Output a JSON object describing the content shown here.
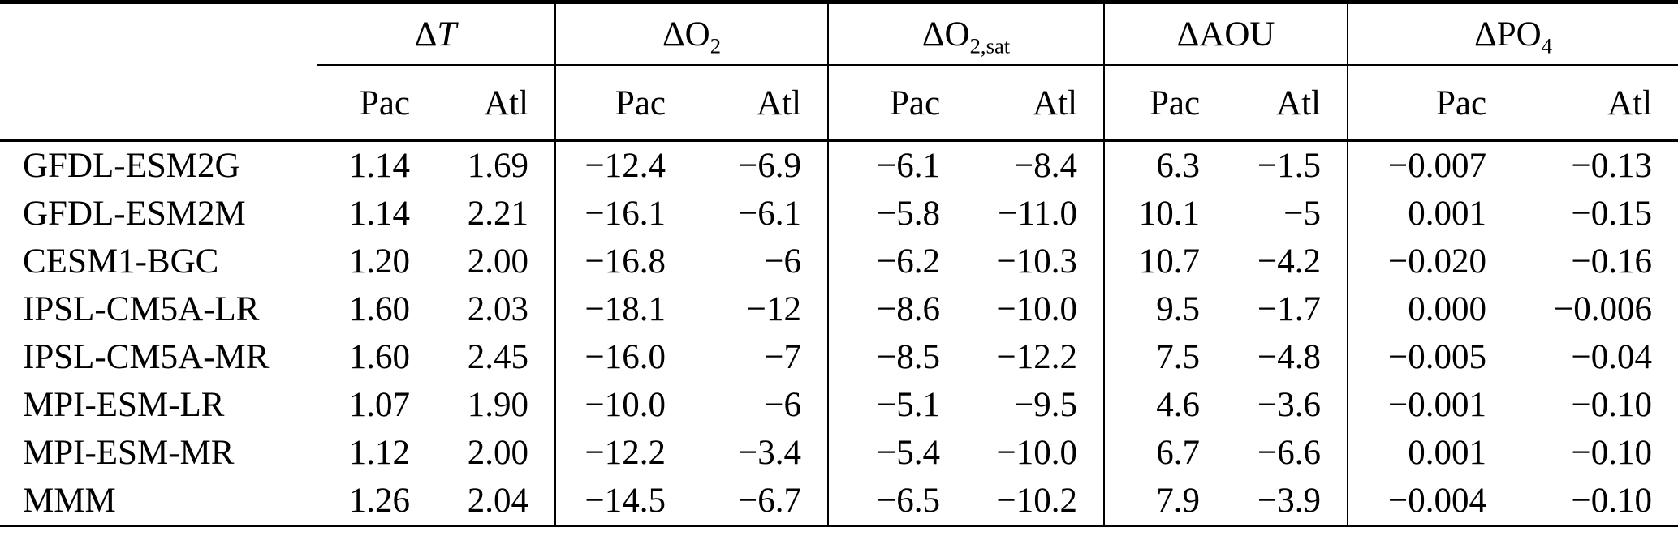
{
  "colors": {
    "background": "#ffffff",
    "text": "#000000",
    "rules": "#000000"
  },
  "table": {
    "groups": [
      {
        "id": "delta-t",
        "prefix": "Δ",
        "italic": "T",
        "sub": ""
      },
      {
        "id": "delta-o2",
        "prefix": "ΔO",
        "italic": "",
        "sub": "2"
      },
      {
        "id": "delta-o2-sat",
        "prefix": "ΔO",
        "italic": "",
        "sub": "2,sat"
      },
      {
        "id": "delta-aou",
        "prefix": "ΔAOU",
        "italic": "",
        "sub": ""
      },
      {
        "id": "delta-po4",
        "prefix": "ΔPO",
        "italic": "",
        "sub": "4"
      }
    ],
    "subheaders": [
      "Pac",
      "Atl"
    ],
    "rows": [
      {
        "model": "GFDL-ESM2G",
        "values": [
          "1.14",
          "1.69",
          "−12.4",
          "−6.9",
          "−6.1",
          "−8.4",
          "6.3",
          "−1.5",
          "−0.007",
          "−0.13"
        ]
      },
      {
        "model": "GFDL-ESM2M",
        "values": [
          "1.14",
          "2.21",
          "−16.1",
          "−6.1",
          "−5.8",
          "−11.0",
          "10.1",
          "−5",
          "0.001",
          "−0.15"
        ]
      },
      {
        "model": "CESM1-BGC",
        "values": [
          "1.20",
          "2.00",
          "−16.8",
          "−6",
          "−6.2",
          "−10.3",
          "10.7",
          "−4.2",
          "−0.020",
          "−0.16"
        ]
      },
      {
        "model": "IPSL-CM5A-LR",
        "values": [
          "1.60",
          "2.03",
          "−18.1",
          "−12",
          "−8.6",
          "−10.0",
          "9.5",
          "−1.7",
          "0.000",
          "−0.006"
        ]
      },
      {
        "model": "IPSL-CM5A-MR",
        "values": [
          "1.60",
          "2.45",
          "−16.0",
          "−7",
          "−8.5",
          "−12.2",
          "7.5",
          "−4.8",
          "−0.005",
          "−0.04"
        ]
      },
      {
        "model": "MPI-ESM-LR",
        "values": [
          "1.07",
          "1.90",
          "−10.0",
          "−6",
          "−5.1",
          "−9.5",
          "4.6",
          "−3.6",
          "−0.001",
          "−0.10"
        ]
      },
      {
        "model": "MPI-ESM-MR",
        "values": [
          "1.12",
          "2.00",
          "−12.2",
          "−3.4",
          "−5.4",
          "−10.0",
          "6.7",
          "−6.6",
          "0.001",
          "−0.10"
        ]
      },
      {
        "model": "MMM",
        "values": [
          "1.26",
          "2.04",
          "−14.5",
          "−6.7",
          "−6.5",
          "−10.2",
          "7.9",
          "−3.9",
          "−0.004",
          "−0.10"
        ]
      }
    ]
  }
}
